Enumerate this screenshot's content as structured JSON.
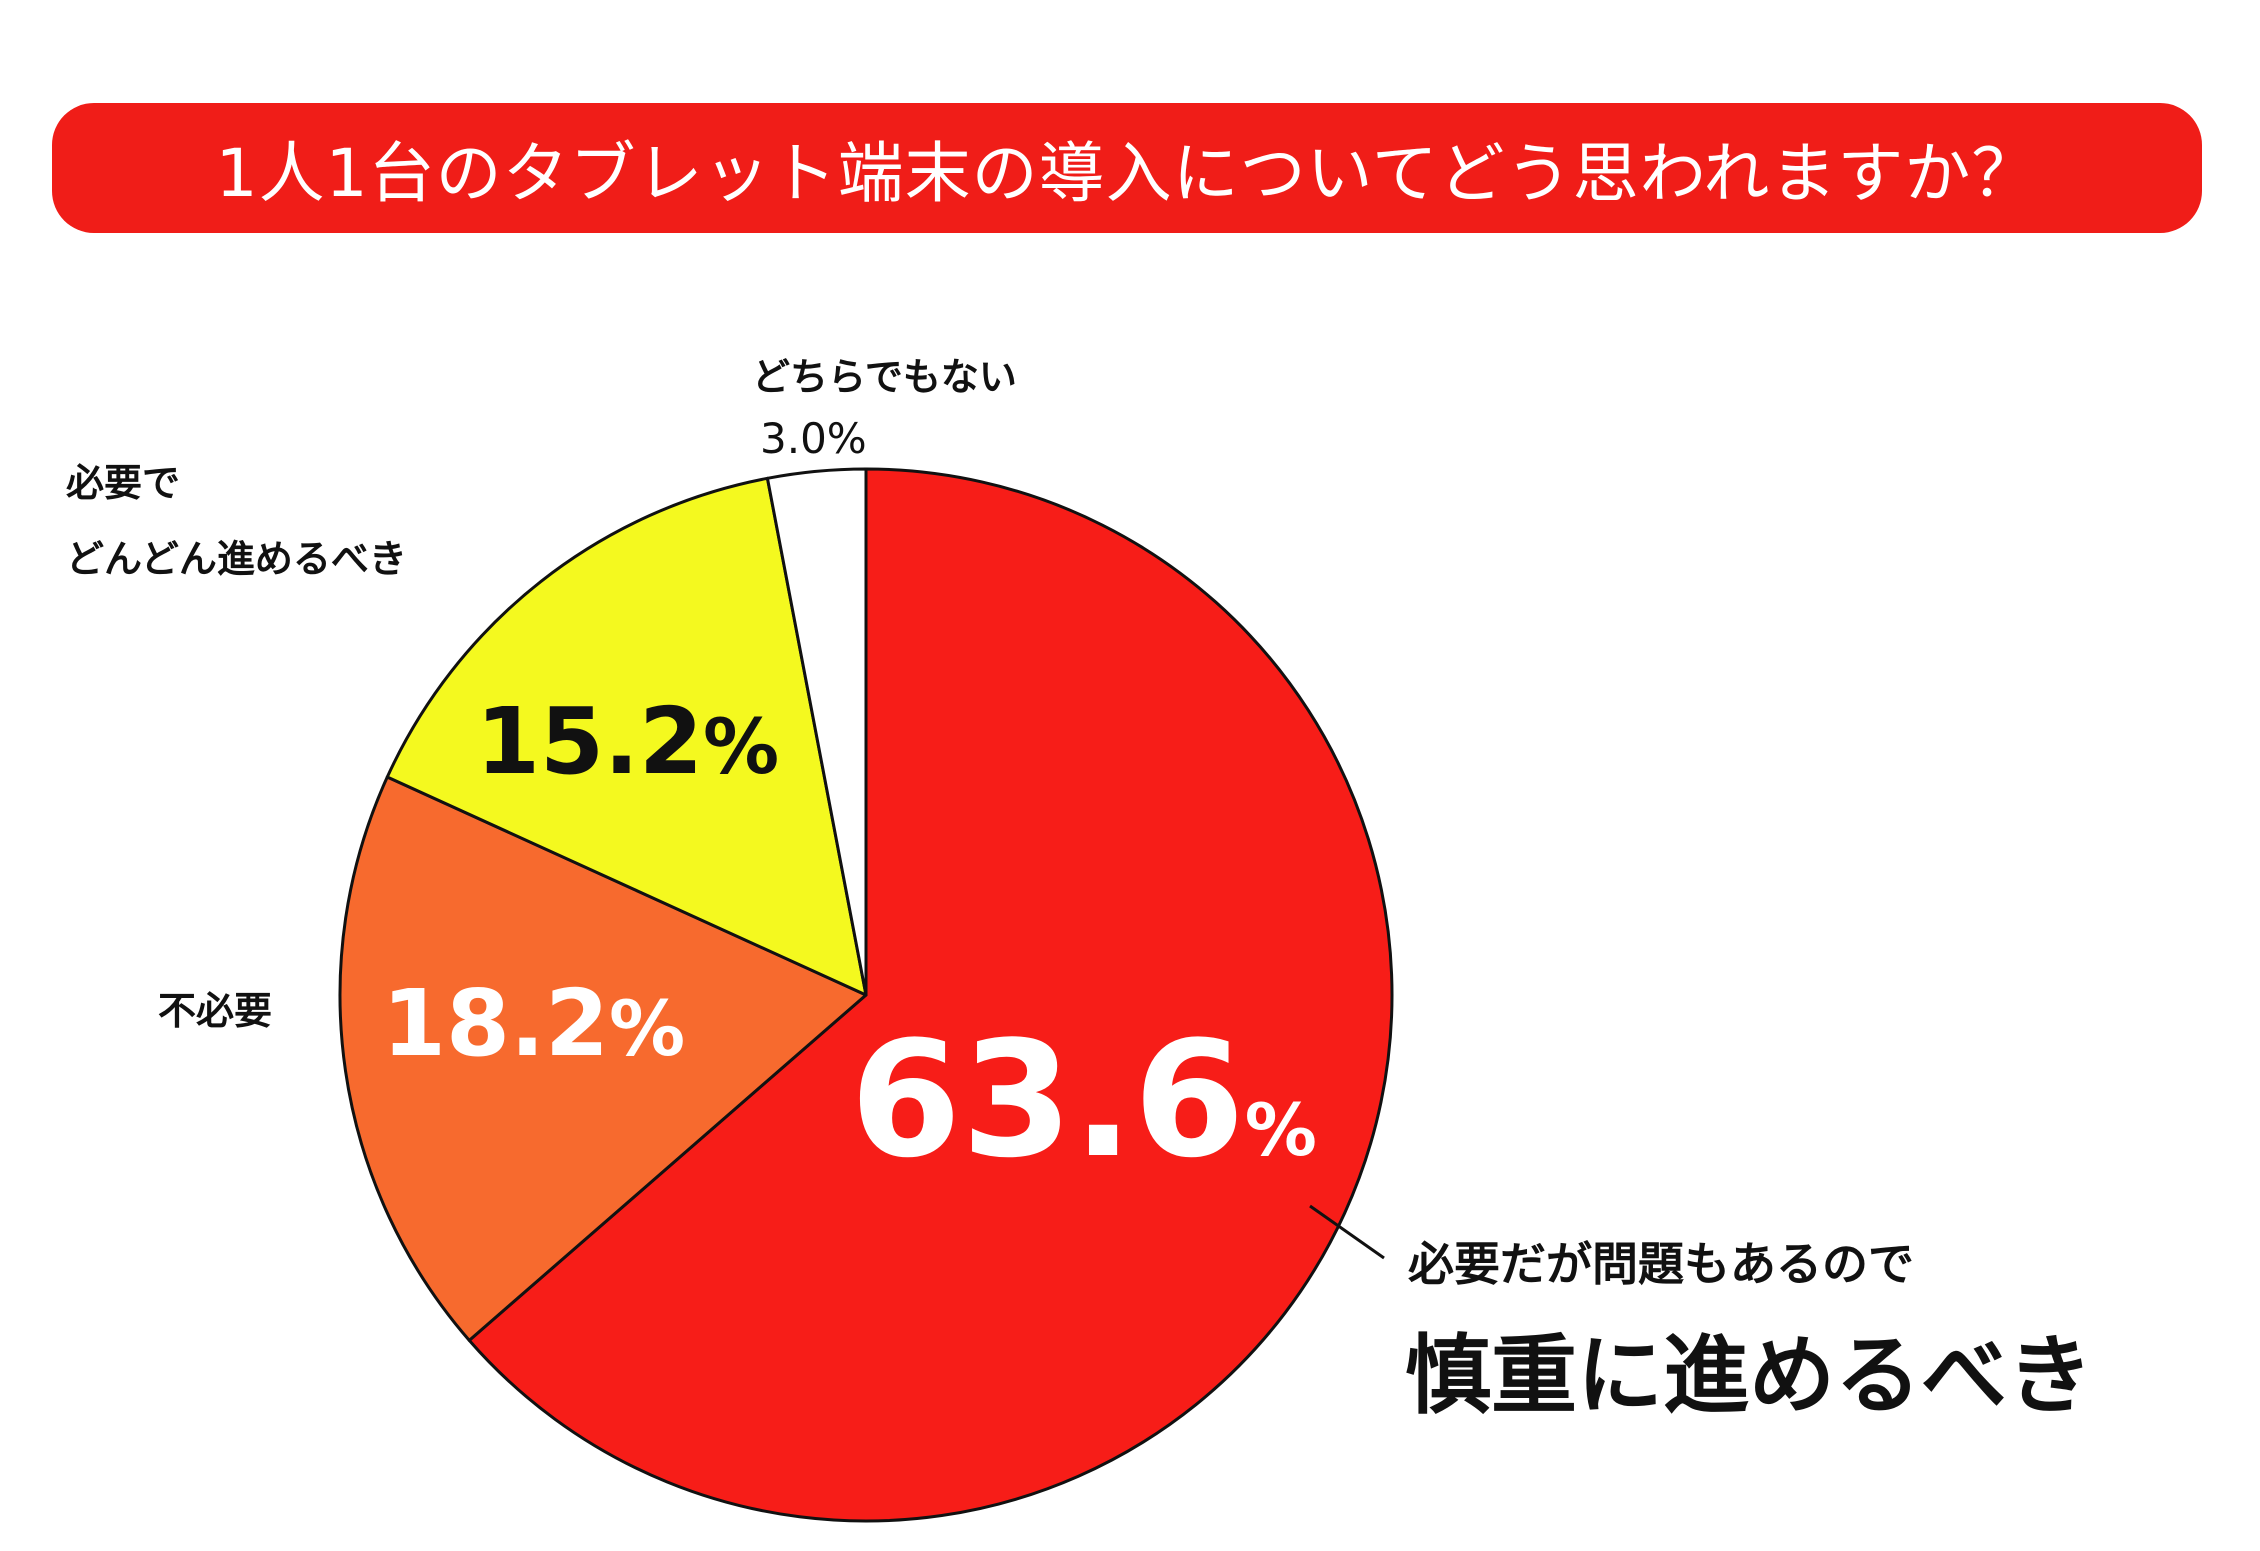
{
  "chart_data": {
    "type": "pie",
    "title": "1人1台のタブレット端末の導入についてどう思われますか？",
    "unit": "%",
    "slices": [
      {
        "label": "必要だが問題もあるので慎重に進めるべき",
        "label_line1": "必要だが問題もあるので",
        "label_line2": "慎重に進めるべき",
        "value": 63.6,
        "display": "63.6",
        "color": "#f71d18"
      },
      {
        "label": "不必要",
        "label_line1": "不必要",
        "value": 18.2,
        "display": "18.2",
        "color": "#f76a2e"
      },
      {
        "label": "必要でどんどん進めるべき",
        "label_line1": "必要で",
        "label_line2": "どんどん進めるべき",
        "value": 15.2,
        "display": "15.2",
        "color": "#f4f91f"
      },
      {
        "label": "どちらでもない",
        "label_line1": "どちらでもない",
        "value": 3.0,
        "display": "3.0",
        "color": "#ffffff"
      }
    ],
    "start_angle": "12 o'clock",
    "direction": "clockwise"
  },
  "colors": {
    "title_banner": "#f01d18",
    "title_text": "#ffffff",
    "outline": "#111111"
  }
}
